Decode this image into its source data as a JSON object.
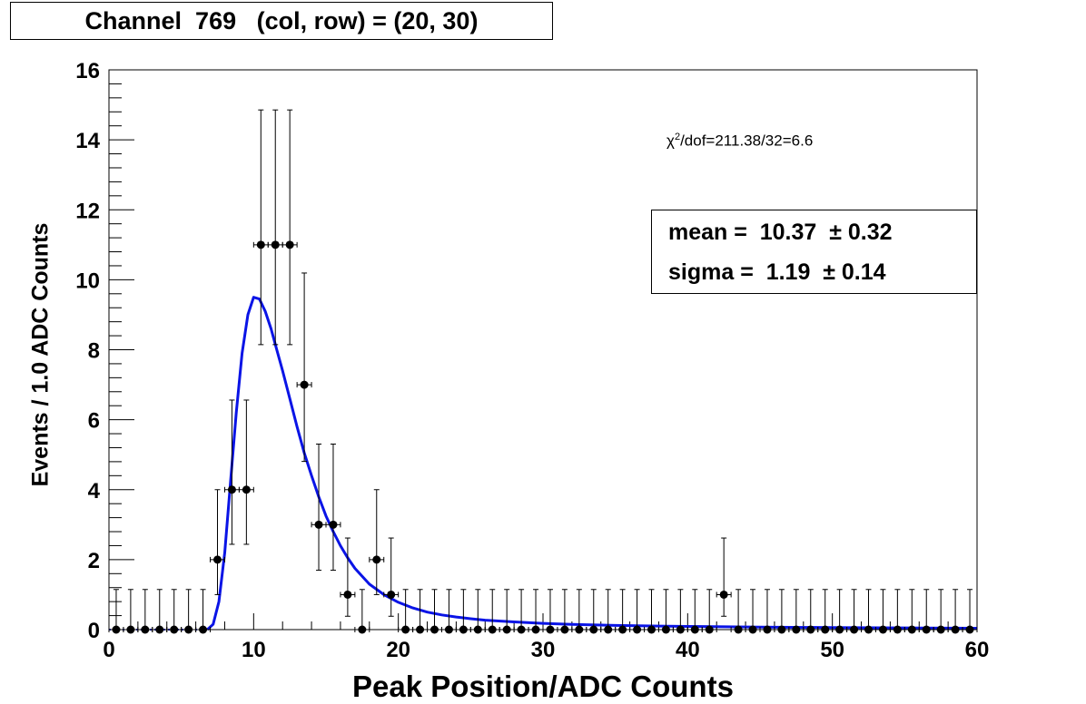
{
  "chart_data": {
    "type": "scatter",
    "title": "Channel  769   (col, row) = (20, 30)",
    "xlabel": "Peak Position/ADC Counts",
    "ylabel": "Events / 1.0 ADC Counts",
    "xlim": [
      0,
      60
    ],
    "ylim": [
      0,
      16
    ],
    "x_ticks": [
      0,
      10,
      20,
      30,
      40,
      50,
      60
    ],
    "y_ticks": [
      0,
      2,
      4,
      6,
      8,
      10,
      12,
      14,
      16
    ],
    "grid": false,
    "series": [
      {
        "kind": "data-points-with-error-bars",
        "color": "#000000",
        "points": [
          [
            0.5,
            0
          ],
          [
            1.5,
            0
          ],
          [
            2.5,
            0
          ],
          [
            3.5,
            0
          ],
          [
            4.5,
            0
          ],
          [
            5.5,
            0
          ],
          [
            6.5,
            0
          ],
          [
            7.5,
            2
          ],
          [
            8.5,
            4
          ],
          [
            9.5,
            4
          ],
          [
            10.5,
            11
          ],
          [
            11.5,
            11
          ],
          [
            12.5,
            11
          ],
          [
            13.5,
            7
          ],
          [
            14.5,
            3
          ],
          [
            15.5,
            3
          ],
          [
            16.5,
            1
          ],
          [
            17.5,
            0
          ],
          [
            18.5,
            2
          ],
          [
            19.5,
            1
          ],
          [
            20.5,
            0
          ],
          [
            21.5,
            0
          ],
          [
            22.5,
            0
          ],
          [
            23.5,
            0
          ],
          [
            24.5,
            0
          ],
          [
            25.5,
            0
          ],
          [
            26.5,
            0
          ],
          [
            27.5,
            0
          ],
          [
            28.5,
            0
          ],
          [
            29.5,
            0
          ],
          [
            30.5,
            0
          ],
          [
            31.5,
            0
          ],
          [
            32.5,
            0
          ],
          [
            33.5,
            0
          ],
          [
            34.5,
            0
          ],
          [
            35.5,
            0
          ],
          [
            36.5,
            0
          ],
          [
            37.5,
            0
          ],
          [
            38.5,
            0
          ],
          [
            39.5,
            0
          ],
          [
            40.5,
            0
          ],
          [
            41.5,
            0
          ],
          [
            42.5,
            1
          ],
          [
            43.5,
            0
          ],
          [
            44.5,
            0
          ],
          [
            45.5,
            0
          ],
          [
            46.5,
            0
          ],
          [
            47.5,
            0
          ],
          [
            48.5,
            0
          ],
          [
            49.5,
            0
          ],
          [
            50.5,
            0
          ],
          [
            51.5,
            0
          ],
          [
            52.5,
            0
          ],
          [
            53.5,
            0
          ],
          [
            54.5,
            0
          ],
          [
            55.5,
            0
          ],
          [
            56.5,
            0
          ],
          [
            57.5,
            0
          ],
          [
            58.5,
            0
          ],
          [
            59.5,
            0
          ]
        ]
      },
      {
        "kind": "fit-curve",
        "color": "#0a14e6",
        "points": [
          [
            6.8,
            0
          ],
          [
            7.2,
            0.15
          ],
          [
            7.6,
            0.8
          ],
          [
            8.0,
            2.2
          ],
          [
            8.4,
            4.2
          ],
          [
            8.8,
            6.2
          ],
          [
            9.2,
            7.9
          ],
          [
            9.6,
            9.0
          ],
          [
            10.0,
            9.5
          ],
          [
            10.4,
            9.45
          ],
          [
            10.8,
            9.1
          ],
          [
            11.2,
            8.6
          ],
          [
            11.6,
            8.0
          ],
          [
            12.0,
            7.4
          ],
          [
            12.5,
            6.6
          ],
          [
            13.0,
            5.8
          ],
          [
            13.5,
            5.05
          ],
          [
            14.0,
            4.4
          ],
          [
            14.5,
            3.8
          ],
          [
            15.0,
            3.25
          ],
          [
            15.5,
            2.8
          ],
          [
            16.0,
            2.4
          ],
          [
            16.5,
            2.05
          ],
          [
            17.0,
            1.75
          ],
          [
            18.0,
            1.3
          ],
          [
            19.0,
            1.0
          ],
          [
            20.0,
            0.78
          ],
          [
            21.0,
            0.62
          ],
          [
            22.0,
            0.5
          ],
          [
            23.0,
            0.42
          ],
          [
            24.0,
            0.36
          ],
          [
            25.0,
            0.31
          ],
          [
            26.0,
            0.27
          ],
          [
            28.0,
            0.22
          ],
          [
            30.0,
            0.18
          ],
          [
            32.0,
            0.15
          ],
          [
            35.0,
            0.12
          ],
          [
            38.0,
            0.1
          ],
          [
            40.0,
            0.09
          ],
          [
            45.0,
            0.07
          ],
          [
            50.0,
            0.06
          ],
          [
            55.0,
            0.05
          ],
          [
            60.0,
            0.04
          ]
        ]
      }
    ],
    "annotations": {
      "chi2_prefix": "χ",
      "chi2_sup": "2",
      "chi2_rest": "/dof=211.38/32=6.6",
      "mean_text": "mean =  10.37  ± 0.32",
      "sigma_text": "sigma =  1.19  ± 0.14"
    }
  }
}
